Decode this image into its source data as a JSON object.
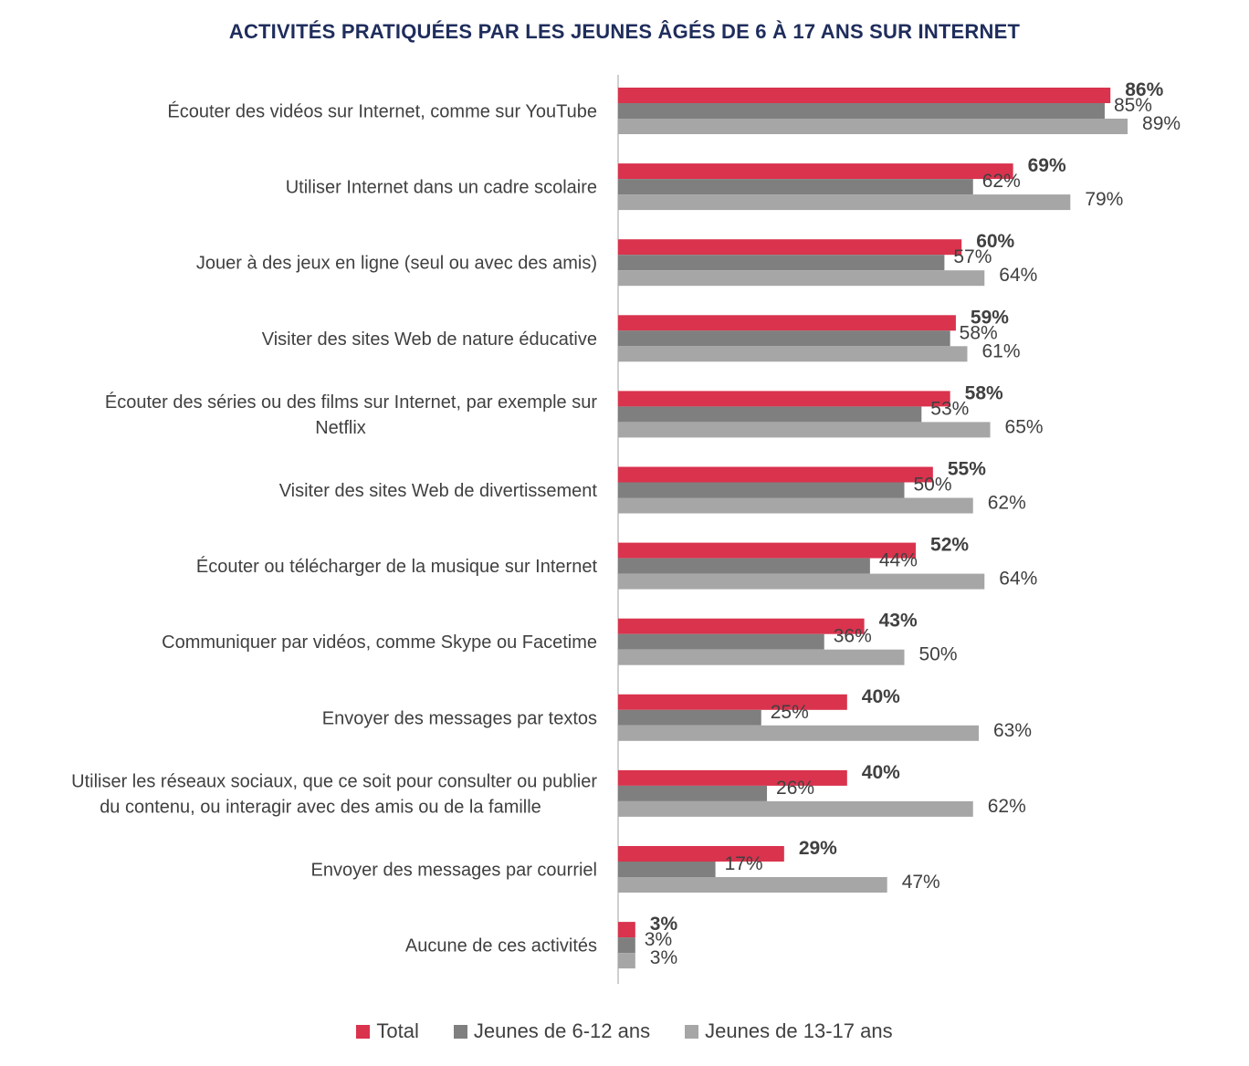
{
  "chart_data": {
    "type": "bar",
    "orientation": "horizontal",
    "title": "ACTIVITÉS PRATIQUÉES PAR LES JEUNES ÂGÉS DE 6 À 17 ANS SUR INTERNET",
    "categories": [
      [
        "Écouter des vidéos sur Internet, comme sur YouTube"
      ],
      [
        "Utiliser Internet dans un cadre scolaire"
      ],
      [
        "Jouer à des jeux en ligne (seul ou avec des amis)"
      ],
      [
        "Visiter des sites Web de nature éducative"
      ],
      [
        "Écouter des séries ou des films sur Internet, par exemple sur",
        "Netflix"
      ],
      [
        "Visiter des sites Web de divertissement"
      ],
      [
        "Écouter ou télécharger de la musique sur Internet"
      ],
      [
        "Communiquer par vidéos, comme Skype ou Facetime"
      ],
      [
        "Envoyer des messages par textos"
      ],
      [
        "Utiliser les réseaux sociaux, que ce soit pour consulter ou publier",
        "du contenu, ou interagir avec des amis ou de la famille"
      ],
      [
        "Envoyer des messages par courriel"
      ],
      [
        "Aucune de ces activités"
      ]
    ],
    "series": [
      {
        "name": "Total",
        "color": "#d9334d",
        "values": [
          86,
          69,
          60,
          59,
          58,
          55,
          52,
          43,
          40,
          40,
          29,
          3
        ],
        "label_bold": true
      },
      {
        "name": "Jeunes de 6-12 ans",
        "color": "#7f7f7f",
        "values": [
          85,
          62,
          57,
          58,
          53,
          50,
          44,
          36,
          25,
          26,
          17,
          3
        ],
        "label_bold": false
      },
      {
        "name": "Jeunes de 13-17 ans",
        "color": "#a6a6a6",
        "values": [
          89,
          79,
          64,
          61,
          65,
          62,
          64,
          50,
          63,
          62,
          47,
          3
        ],
        "label_bold": false
      }
    ],
    "value_suffix": "%",
    "xlim": [
      0,
      100
    ],
    "grid": false,
    "legend_position": "bottom"
  }
}
